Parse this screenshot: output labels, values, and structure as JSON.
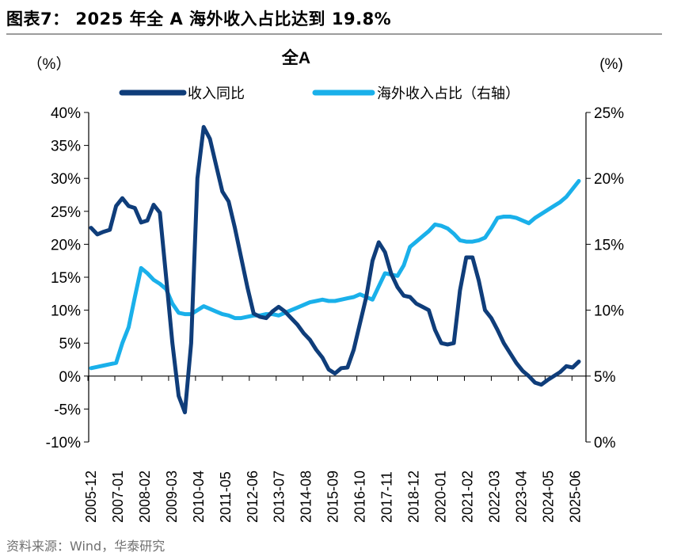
{
  "figure": {
    "title": "图表7： 2025 年全 A 海外收入占比达到 19.8%",
    "source": "资料来源：Wind，华泰研究"
  },
  "chart_data": {
    "type": "line",
    "title": "全A",
    "left_unit": "（%）",
    "right_unit": "(%)",
    "legend_position": "top",
    "grid": false,
    "x_tick_labels": [
      "2005-12",
      "2007-01",
      "2008-02",
      "2009-03",
      "2010-04",
      "2011-05",
      "2012-06",
      "2013-07",
      "2014-08",
      "2015-09",
      "2016-10",
      "2017-11",
      "2018-12",
      "2020-01",
      "2021-02",
      "2022-03",
      "2023-04",
      "2024-05",
      "2025-06"
    ],
    "y_left": {
      "min": -10,
      "max": 40,
      "step": 5,
      "tick_labels": [
        "-10%",
        "-5%",
        "0%",
        "5%",
        "10%",
        "15%",
        "20%",
        "25%",
        "30%",
        "35%",
        "40%"
      ]
    },
    "y_right": {
      "min": 0,
      "max": 25,
      "step": 5,
      "tick_labels": [
        "0%",
        "5%",
        "10%",
        "15%",
        "20%",
        "25%"
      ]
    },
    "series": [
      {
        "name": "收入同比",
        "axis": "left",
        "color": "#0f3d7a",
        "values": [
          22.5,
          21.5,
          21.9,
          22.2,
          25.8,
          27.0,
          25.8,
          25.5,
          23.3,
          23.6,
          26.0,
          24.8,
          15.0,
          5.0,
          -3.0,
          -5.5,
          5.0,
          30.0,
          37.8,
          36.0,
          32.0,
          28.0,
          26.5,
          22.5,
          18.0,
          13.5,
          9.5,
          9.0,
          8.8,
          9.8,
          10.5,
          9.8,
          8.8,
          7.8,
          6.5,
          5.5,
          4.0,
          2.8,
          1.0,
          0.4,
          1.2,
          1.3,
          4.0,
          8.0,
          12.0,
          17.5,
          20.3,
          18.8,
          15.5,
          13.5,
          12.2,
          12.0,
          11.0,
          10.5,
          10.0,
          7.0,
          5.0,
          4.8,
          5.0,
          13.0,
          18.0,
          18.0,
          14.5,
          10.0,
          8.8,
          7.0,
          5.0,
          3.5,
          2.0,
          0.8,
          0.0,
          -1.0,
          -1.3,
          -0.6,
          0.0,
          0.6,
          1.5,
          1.3,
          2.2
        ]
      },
      {
        "name": "海外收入占比（右轴）",
        "axis": "right",
        "color": "#1ab0ea",
        "values": [
          5.6,
          5.7,
          5.8,
          5.9,
          6.0,
          7.5,
          8.7,
          11.0,
          13.2,
          12.8,
          12.3,
          12.0,
          11.6,
          10.5,
          9.8,
          9.7,
          9.7,
          10.0,
          10.3,
          10.1,
          9.9,
          9.7,
          9.6,
          9.4,
          9.4,
          9.5,
          9.6,
          9.6,
          9.7,
          9.7,
          9.6,
          9.8,
          10.0,
          10.2,
          10.4,
          10.6,
          10.7,
          10.8,
          10.7,
          10.7,
          10.8,
          10.9,
          11.0,
          11.2,
          11.0,
          10.8,
          11.8,
          12.8,
          12.7,
          12.6,
          13.4,
          14.8,
          15.2,
          15.6,
          16.0,
          16.5,
          16.4,
          16.2,
          15.8,
          15.3,
          15.2,
          15.2,
          15.3,
          15.5,
          16.2,
          17.0,
          17.1,
          17.1,
          17.0,
          16.8,
          16.6,
          17.0,
          17.3,
          17.6,
          17.9,
          18.2,
          18.6,
          19.2,
          19.8
        ]
      }
    ]
  }
}
